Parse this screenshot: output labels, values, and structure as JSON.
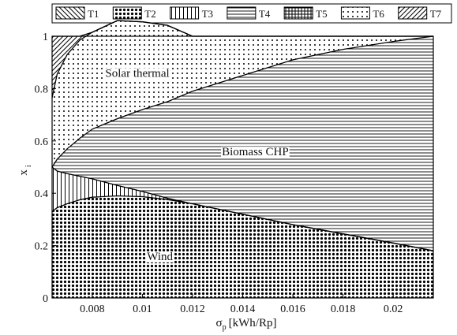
{
  "chart_data": {
    "type": "area",
    "xlabel": "σ_p [kWh/Rp]",
    "xlabel_main": "σ",
    "xlabel_sub": "p",
    "xlabel_unit": "[kWh/Rp]",
    "ylabel": "x_i",
    "ylabel_main": "x",
    "ylabel_sub": "i",
    "xlim": [
      0.0064,
      0.0216
    ],
    "ylim": [
      0,
      1
    ],
    "xticks": [
      "0.008",
      "0.01",
      "0.012",
      "0.014",
      "0.016",
      "0.018",
      "0.02"
    ],
    "xtick_values": [
      0.008,
      0.01,
      0.012,
      0.014,
      0.016,
      0.018,
      0.02
    ],
    "yticks": [
      "0",
      "0.2",
      "0.4",
      "0.6",
      "0.8",
      "1"
    ],
    "ytick_values": [
      0,
      0.2,
      0.4,
      0.6,
      0.8,
      1
    ],
    "grid": false,
    "legend_position": "top",
    "legend": [
      {
        "key": "T1",
        "label": "T1",
        "pattern": "diagonal-down"
      },
      {
        "key": "T2",
        "label": "T2",
        "pattern": "dense-dots"
      },
      {
        "key": "T3",
        "label": "T3",
        "pattern": "vertical-lines"
      },
      {
        "key": "T4",
        "label": "T4",
        "pattern": "horizontal-lines"
      },
      {
        "key": "T5",
        "label": "T5",
        "pattern": "grid"
      },
      {
        "key": "T6",
        "label": "T6",
        "pattern": "sparse-dots"
      },
      {
        "key": "T7",
        "label": "T7",
        "pattern": "diagonal-up"
      }
    ],
    "x": [
      0.0064,
      0.0066,
      0.007,
      0.0075,
      0.008,
      0.009,
      0.01,
      0.011,
      0.012,
      0.014,
      0.016,
      0.018,
      0.02,
      0.0216
    ],
    "series": [
      {
        "key": "T1",
        "values": [
          0.0,
          0.0,
          0.0,
          0.0,
          0.0,
          0.0,
          0.0,
          0.0,
          0.0,
          0.0,
          0.0,
          0.0,
          0.0,
          0.0
        ]
      },
      {
        "key": "T2",
        "values": [
          0.33,
          0.345,
          0.36,
          0.375,
          0.385,
          0.39,
          0.387,
          0.376,
          0.36,
          0.32,
          0.28,
          0.245,
          0.21,
          0.18
        ]
      },
      {
        "key": "T3",
        "values": [
          0.17,
          0.14,
          0.115,
          0.09,
          0.07,
          0.04,
          0.02,
          0.005,
          0.0,
          0.0,
          0.0,
          0.0,
          0.0,
          0.0
        ]
      },
      {
        "key": "T4",
        "values": [
          0.0,
          0.045,
          0.095,
          0.145,
          0.19,
          0.255,
          0.313,
          0.369,
          0.43,
          0.53,
          0.63,
          0.705,
          0.77,
          0.82
        ]
      },
      {
        "key": "T5",
        "values": [
          0.0,
          0.0,
          0.0,
          0.0,
          0.0,
          0.0,
          0.0,
          0.0,
          0.0,
          0.0,
          0.0,
          0.0,
          0.0,
          0.0
        ]
      },
      {
        "key": "T6",
        "values": [
          0.265,
          0.325,
          0.36,
          0.375,
          0.37,
          0.375,
          0.335,
          0.292,
          0.21,
          0.15,
          0.09,
          0.05,
          0.02,
          0.0
        ]
      },
      {
        "key": "T7",
        "values": [
          0.235,
          0.145,
          0.07,
          0.015,
          0.0,
          0.0,
          0.0,
          0.0,
          0.0,
          0.0,
          0.0,
          0.0,
          0.0,
          0.0
        ]
      }
    ],
    "annotations": [
      {
        "text": "Solar thermal",
        "x": 0.0098,
        "y": 0.86
      },
      {
        "text": "Biomass CHP",
        "x": 0.0145,
        "y": 0.56
      },
      {
        "text": "Wind",
        "x": 0.0107,
        "y": 0.16
      }
    ]
  }
}
